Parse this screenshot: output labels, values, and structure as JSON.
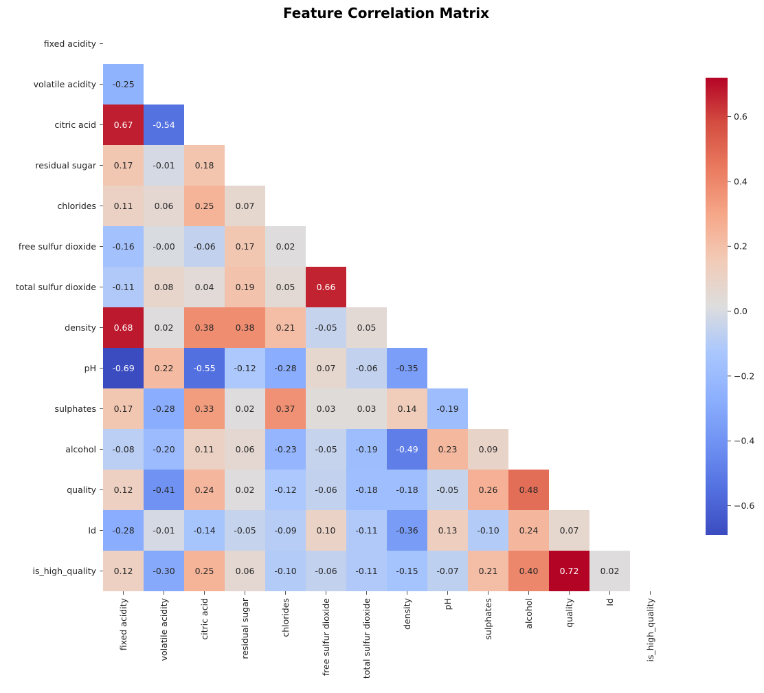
{
  "chart_data": {
    "type": "heatmap",
    "title": "Feature Correlation Matrix",
    "xlabel": "",
    "ylabel": "",
    "labels": [
      "fixed acidity",
      "volatile acidity",
      "citric acid",
      "residual sugar",
      "chlorides",
      "free sulfur dioxide",
      "total sulfur dioxide",
      "density",
      "pH",
      "sulphates",
      "alcohol",
      "quality",
      "Id",
      "is_high_quality"
    ],
    "mask": "upper-triangle-including-diagonal",
    "rows": [
      [],
      [
        -0.25
      ],
      [
        0.67,
        -0.54
      ],
      [
        0.17,
        -0.01,
        0.18
      ],
      [
        0.11,
        0.06,
        0.25,
        0.07
      ],
      [
        -0.16,
        -0.0,
        -0.06,
        0.17,
        0.02
      ],
      [
        -0.11,
        0.08,
        0.04,
        0.19,
        0.05,
        0.66
      ],
      [
        0.68,
        0.02,
        0.38,
        0.38,
        0.21,
        -0.05,
        0.05
      ],
      [
        -0.69,
        0.22,
        -0.55,
        -0.12,
        -0.28,
        0.07,
        -0.06,
        -0.35
      ],
      [
        0.17,
        -0.28,
        0.33,
        0.02,
        0.37,
        0.03,
        0.03,
        0.14,
        -0.19
      ],
      [
        -0.08,
        -0.2,
        0.11,
        0.06,
        -0.23,
        -0.05,
        -0.19,
        -0.49,
        0.23,
        0.09
      ],
      [
        0.12,
        -0.41,
        0.24,
        0.02,
        -0.12,
        -0.06,
        -0.18,
        -0.18,
        -0.05,
        0.26,
        0.48
      ],
      [
        -0.28,
        -0.01,
        -0.14,
        -0.05,
        -0.09,
        0.1,
        -0.11,
        -0.36,
        0.13,
        -0.1,
        0.24,
        0.07
      ],
      [
        0.12,
        -0.3,
        0.25,
        0.06,
        -0.1,
        -0.06,
        -0.11,
        -0.15,
        -0.07,
        0.21,
        0.4,
        0.72,
        0.02
      ]
    ],
    "annotation_format": "0.00",
    "colormap": "coolwarm",
    "color_range": [
      -0.69,
      0.72
    ],
    "colorbar": {
      "ticks": [
        -0.6,
        -0.4,
        -0.2,
        0.0,
        0.2,
        0.4,
        0.6
      ],
      "tick_labels": [
        "−0.6",
        "−0.4",
        "−0.2",
        "0.0",
        "0.2",
        "0.4",
        "0.6"
      ],
      "placement": "right"
    }
  }
}
